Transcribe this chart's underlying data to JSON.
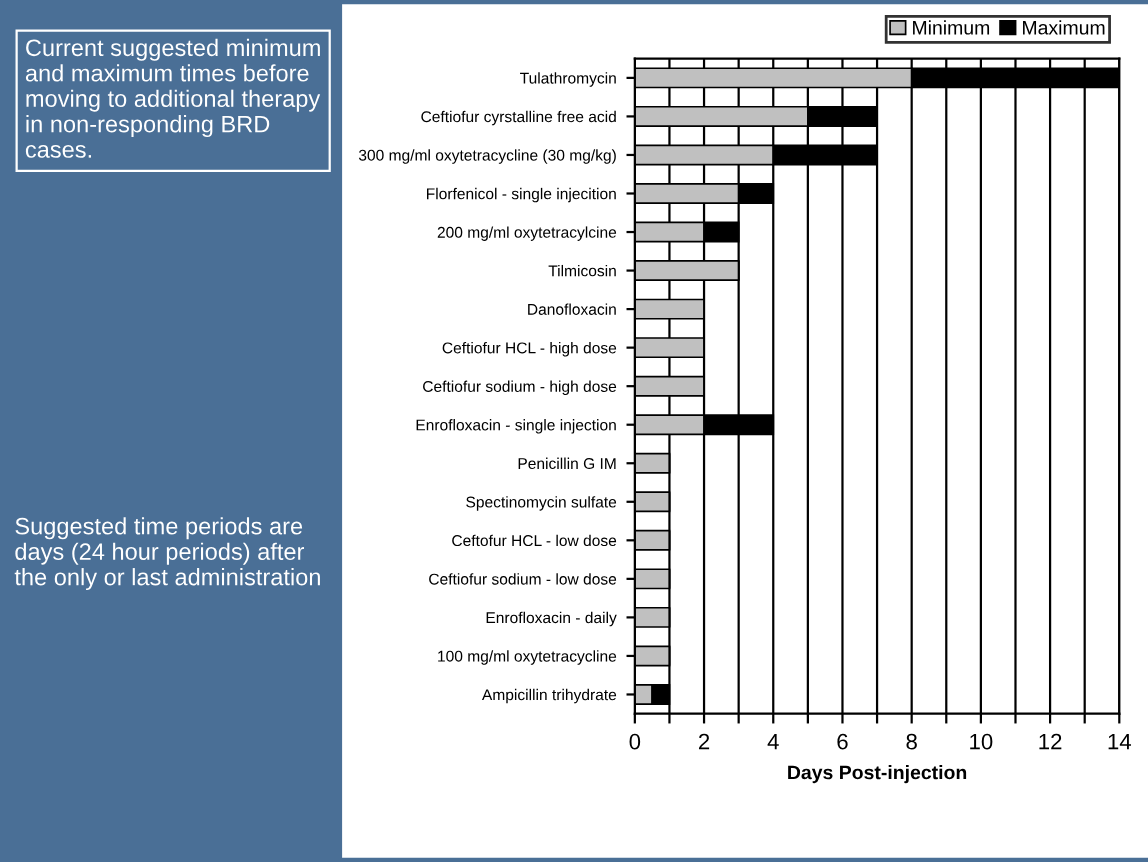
{
  "chart_data": {
    "type": "bar",
    "orientation": "horizontal",
    "stacked": true,
    "categories": [
      "Tulathromycin",
      "Ceftiofur cyrstalline free acid",
      "300 mg/ml oxytetracycline (30 mg/kg)",
      "Florfenicol - single injecition",
      "200 mg/ml oxytetracylcine",
      "Tilmicosin",
      "Danofloxacin",
      "Ceftiofur HCL - high dose",
      "Ceftiofur sodium - high dose",
      "Enrofloxacin - single injection",
      "Penicillin G IM",
      "Spectinomycin sulfate",
      "Ceftofur HCL - low dose",
      "Ceftiofur sodium - low dose",
      "Enrofloxacin - daily",
      "100 mg/ml oxytetracycline",
      "Ampicillin trihydrate"
    ],
    "series": [
      {
        "name": "Minimum",
        "color": "#c0c0c0",
        "values": [
          8,
          5,
          4,
          3,
          2,
          3,
          2,
          2,
          2,
          2,
          1,
          1,
          1,
          1,
          1,
          1,
          0.5
        ]
      },
      {
        "name": "Maximum",
        "color": "#000000",
        "values": [
          6,
          2,
          3,
          1,
          1,
          0,
          0,
          0,
          0,
          2,
          0,
          0,
          0,
          0,
          0,
          0,
          0.5
        ]
      }
    ],
    "xlabel": "Days Post-injection",
    "xlim": [
      0,
      14
    ],
    "xticks": [
      0,
      {
        "value": 1,
        "label": null
      },
      2,
      {
        "value": 3,
        "label": null
      },
      4,
      {
        "value": 5,
        "label": null
      },
      6,
      {
        "value": 7,
        "label": null
      },
      8,
      {
        "value": 9,
        "label": null
      },
      10,
      {
        "value": 11,
        "label": null
      },
      12,
      {
        "value": 13,
        "label": null
      },
      14
    ],
    "grid": "x",
    "legend": "top right",
    "annotations": [
      "Current suggested minimum and maximum times before moving to additional therapy in non-responding BRD cases.",
      "Suggested time periods are days (24 hour periods) after the only or last administration"
    ]
  }
}
